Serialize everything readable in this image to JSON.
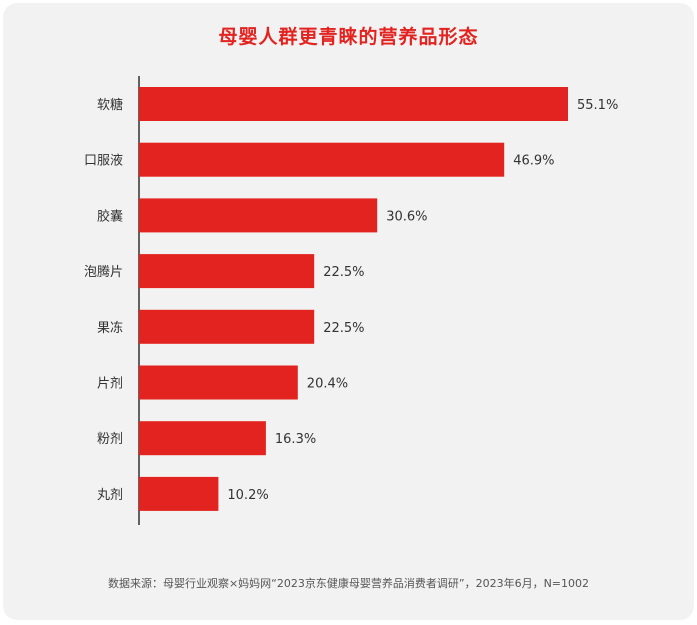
{
  "title": "母婴人群更青睐的营养品形态",
  "source": "数据来源：母婴行业观察×妈妈网“2023京东健康母婴营养品消费者调研”，2023年6月，N=1002",
  "chart_data": {
    "type": "bar",
    "orientation": "horizontal",
    "title": "母婴人群更青睐的营养品形态",
    "categories": [
      "软糖",
      "口服液",
      "胶囊",
      "泡腾片",
      "果冻",
      "片剂",
      "粉剂",
      "丸剂"
    ],
    "values": [
      55.1,
      46.9,
      30.6,
      22.5,
      22.5,
      20.4,
      16.3,
      10.2
    ],
    "value_labels": [
      "55.1%",
      "46.9%",
      "30.6%",
      "22.5%",
      "22.5%",
      "20.4%",
      "16.3%",
      "10.2%"
    ],
    "unit": "%",
    "xlim": [
      0,
      55.1
    ],
    "color": "#e3231f",
    "grid": false,
    "legend": "none"
  }
}
